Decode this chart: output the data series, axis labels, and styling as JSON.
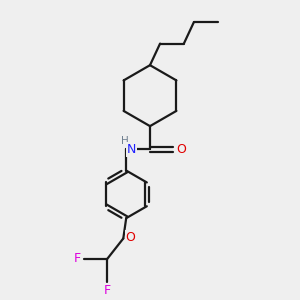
{
  "background_color": "#efefef",
  "bond_color": "#1a1a1a",
  "N_color": "#2020ff",
  "O_color": "#e00000",
  "F_color": "#dd00dd",
  "H_color": "#708090",
  "line_width": 1.6,
  "figsize": [
    3.0,
    3.0
  ],
  "dpi": 100,
  "xlim": [
    0,
    10
  ],
  "ylim": [
    0,
    10
  ]
}
